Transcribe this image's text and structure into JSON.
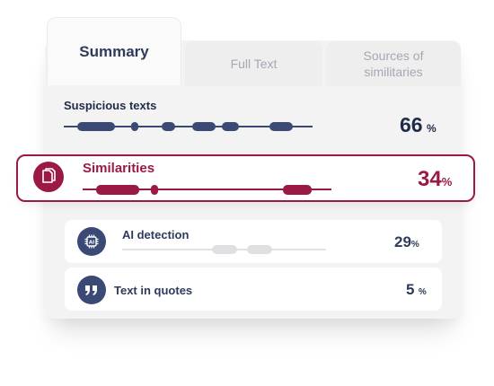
{
  "tabs": {
    "summary": "Summary",
    "full_text": "Full Text",
    "sources_line1": "Sources of",
    "sources_line2": "similitaries"
  },
  "suspicious": {
    "title": "Suspicious texts",
    "value": "66",
    "unit": "%"
  },
  "similarities": {
    "title": "Similarities",
    "value": "34",
    "unit": "%"
  },
  "ai_detection": {
    "title": "AI detection",
    "value": "29",
    "unit": "%"
  },
  "quotes": {
    "title": "Text in quotes",
    "value": "5",
    "unit": "%"
  },
  "colors": {
    "navy": "#3a4a75",
    "crimson": "#9b1a45",
    "tab_text": "#2f3b5c",
    "muted": "#a6a8b2",
    "ai_segments": "#e0e0e2"
  },
  "icons": {
    "similarities": "copy-document-icon",
    "ai_detection": "ai-chip-icon",
    "quotes": "quote-icon"
  }
}
